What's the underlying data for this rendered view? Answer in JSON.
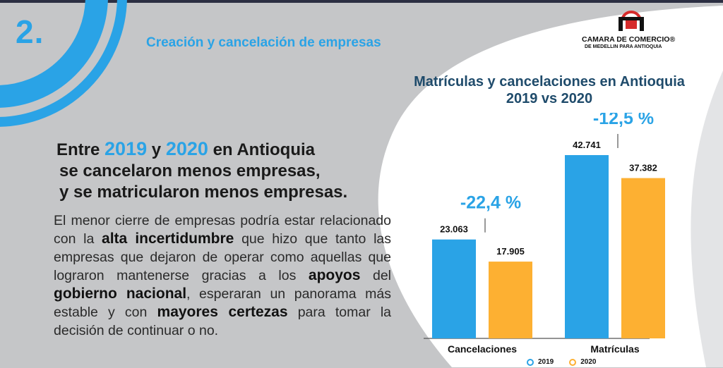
{
  "header": {
    "section_number": "2.",
    "section_title": "Creación y cancelación de empresas"
  },
  "logo": {
    "line1": "CAMARA DE COMERCIO®",
    "line2": "DE MEDELLIN PARA ANTIOQUIA"
  },
  "headline": {
    "prefix": "Entre",
    "year1": "2019",
    "connector": "y",
    "year2": "2020",
    "suffix": "en Antioquia",
    "line2": "se cancelaron menos empresas,",
    "line3": "y se matricularon menos empresas."
  },
  "body": {
    "t1": "El menor cierre de empresas podría estar relacionado con la",
    "b1": "alta incertidumbre",
    "t2": "que hizo que tanto las empresas que dejaron de operar como aquellas que lograron mantenerse gracias a los",
    "b2": "apoyos",
    "t3": "del",
    "b3": "gobierno nacional",
    "t4": ", esperaran un panorama más estable y con",
    "b4": "mayores certezas",
    "t5": "para tomar la decisión de continuar o no."
  },
  "colors": {
    "series_2019": "#2aa3e6",
    "series_2020": "#fdb032",
    "accent": "#2aa3e6",
    "title_dark": "#1f4b6b"
  },
  "chart_data": {
    "type": "bar",
    "title": "Matrículas y cancelaciones en Antioquia",
    "subtitle": "2019 vs 2020",
    "categories": [
      "Cancelaciones",
      "Matrículas"
    ],
    "series": [
      {
        "name": "2019",
        "values": [
          23063,
          42741
        ],
        "labels": [
          "23.063",
          "42.741"
        ]
      },
      {
        "name": "2020",
        "values": [
          17905,
          37382
        ],
        "labels": [
          "17.905",
          "37.382"
        ]
      }
    ],
    "changes": [
      "-22,4 %",
      "-12,5 %"
    ],
    "ylim": [
      0,
      48000
    ],
    "legend_position": "bottom-center",
    "grid": false
  }
}
